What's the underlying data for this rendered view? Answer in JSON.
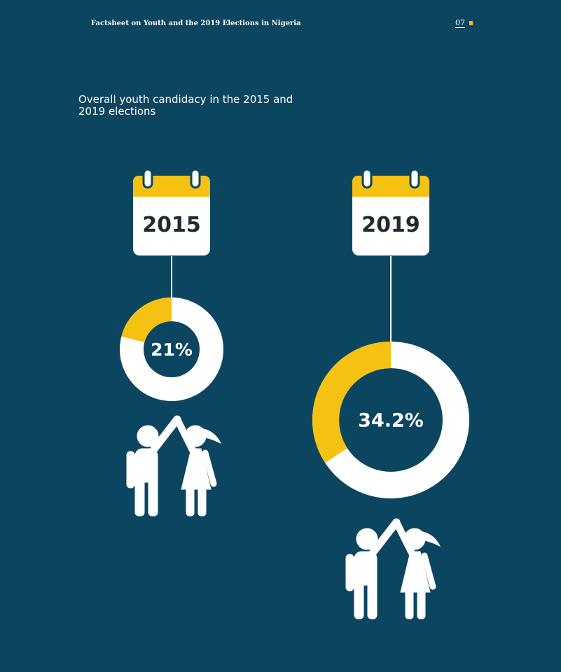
{
  "header": {
    "title": "Factsheet on Youth and the 2019 Elections in Nigeria",
    "page_number": "07"
  },
  "colors": {
    "background": "#0c4560",
    "accent": "#f5c214",
    "ring": "#ffffff"
  },
  "icons": [
    "calendar-icon",
    "youth-couple-icon"
  ],
  "chart_data": {
    "type": "pie",
    "title": "Overall youth candidacy in the 2015 and 2019 elections",
    "categories": [
      "2015",
      "2019"
    ],
    "values": [
      21,
      34.2
    ],
    "value_labels": [
      "21%",
      "34.2%"
    ],
    "unit": "%"
  }
}
